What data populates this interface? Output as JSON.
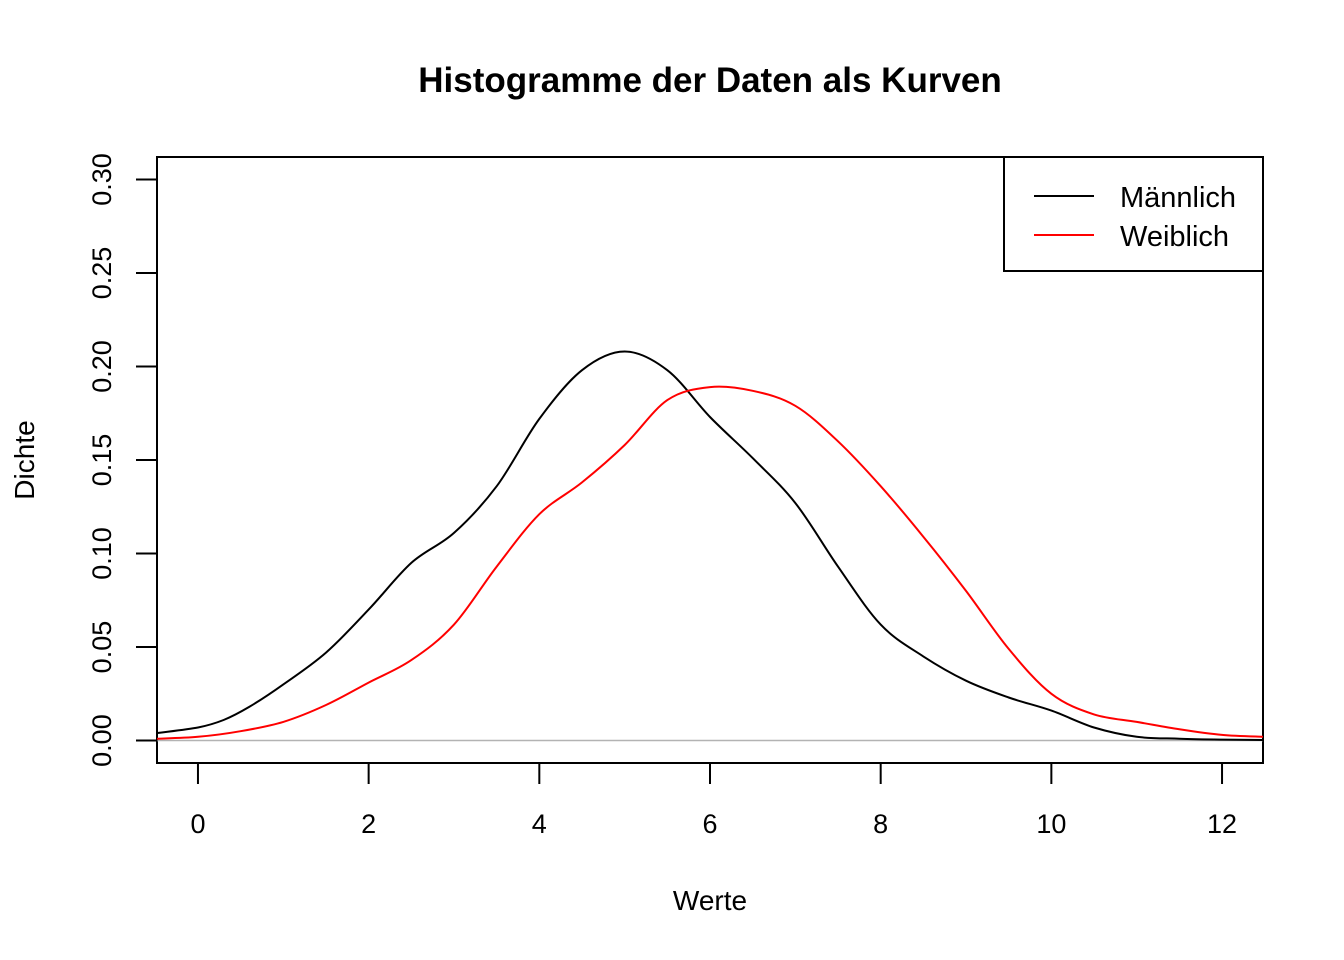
{
  "chart_data": {
    "type": "line",
    "title": "Histogramme der Daten als Kurven",
    "xlabel": "Werte",
    "ylabel": "Dichte",
    "xlim": [
      -0.48,
      12.48
    ],
    "ylim": [
      -0.012,
      0.312
    ],
    "x_ticks": [
      0,
      2,
      4,
      6,
      8,
      10,
      12
    ],
    "x_tick_labels": [
      "0",
      "2",
      "4",
      "6",
      "8",
      "10",
      "12"
    ],
    "y_ticks": [
      0.0,
      0.05,
      0.1,
      0.15,
      0.2,
      0.25,
      0.3
    ],
    "y_tick_labels": [
      "0.00",
      "0.05",
      "0.10",
      "0.15",
      "0.20",
      "0.25",
      "0.30"
    ],
    "baseline_y": 0,
    "legend_position": "top-right",
    "series": [
      {
        "name": "Männlich",
        "color": "#000000",
        "x": [
          -0.48,
          0,
          0.3,
          0.6,
          1.0,
          1.5,
          2.0,
          2.5,
          3.0,
          3.5,
          4.0,
          4.5,
          5.0,
          5.5,
          6.0,
          6.5,
          7.0,
          7.5,
          8.0,
          8.5,
          9.0,
          9.5,
          10.0,
          10.5,
          11.0,
          11.5,
          12.0,
          12.48
        ],
        "values": [
          0.004,
          0.007,
          0.011,
          0.018,
          0.03,
          0.047,
          0.07,
          0.095,
          0.111,
          0.136,
          0.172,
          0.198,
          0.208,
          0.198,
          0.173,
          0.151,
          0.127,
          0.093,
          0.062,
          0.045,
          0.032,
          0.023,
          0.016,
          0.007,
          0.002,
          0.001,
          0.0005,
          0.0003
        ]
      },
      {
        "name": "Weiblich",
        "color": "#ff0000",
        "x": [
          -0.48,
          0,
          0.5,
          1.0,
          1.5,
          2.0,
          2.5,
          3.0,
          3.5,
          4.0,
          4.5,
          5.0,
          5.5,
          6.0,
          6.5,
          7.0,
          7.5,
          8.0,
          8.5,
          9.0,
          9.5,
          10.0,
          10.5,
          11.0,
          11.5,
          12.0,
          12.48
        ],
        "values": [
          0.001,
          0.002,
          0.005,
          0.01,
          0.019,
          0.031,
          0.043,
          0.062,
          0.093,
          0.121,
          0.138,
          0.158,
          0.182,
          0.189,
          0.187,
          0.179,
          0.16,
          0.136,
          0.109,
          0.08,
          0.049,
          0.025,
          0.014,
          0.01,
          0.006,
          0.003,
          0.002
        ]
      }
    ]
  }
}
